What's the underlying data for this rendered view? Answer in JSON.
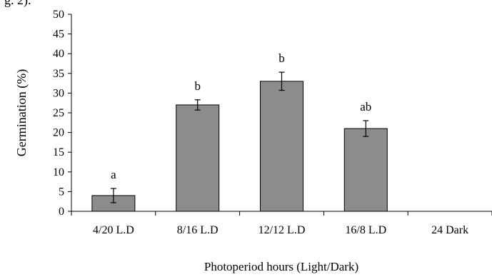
{
  "page": {
    "clipped_text": "g. 2)."
  },
  "chart_data": {
    "type": "bar",
    "categories": [
      "4/20 L.D",
      "8/16 L.D",
      "12/12 L.D",
      "16/8 L.D",
      "24 Dark"
    ],
    "values": [
      4,
      27,
      33,
      21,
      0
    ],
    "errors": [
      1.8,
      1.3,
      2.3,
      2.0,
      0
    ],
    "letters": [
      "a",
      "b",
      "b",
      "ab",
      ""
    ],
    "xlabel": "Photoperiod hours (Light/Dark)",
    "ylabel": "Germination (%)",
    "ylim": [
      0,
      50
    ],
    "yticks": [
      0,
      5,
      10,
      15,
      20,
      25,
      30,
      35,
      40,
      45,
      50
    ],
    "bar_color": "#8c8c8c",
    "bar_stroke": "#000000",
    "grid": false
  }
}
